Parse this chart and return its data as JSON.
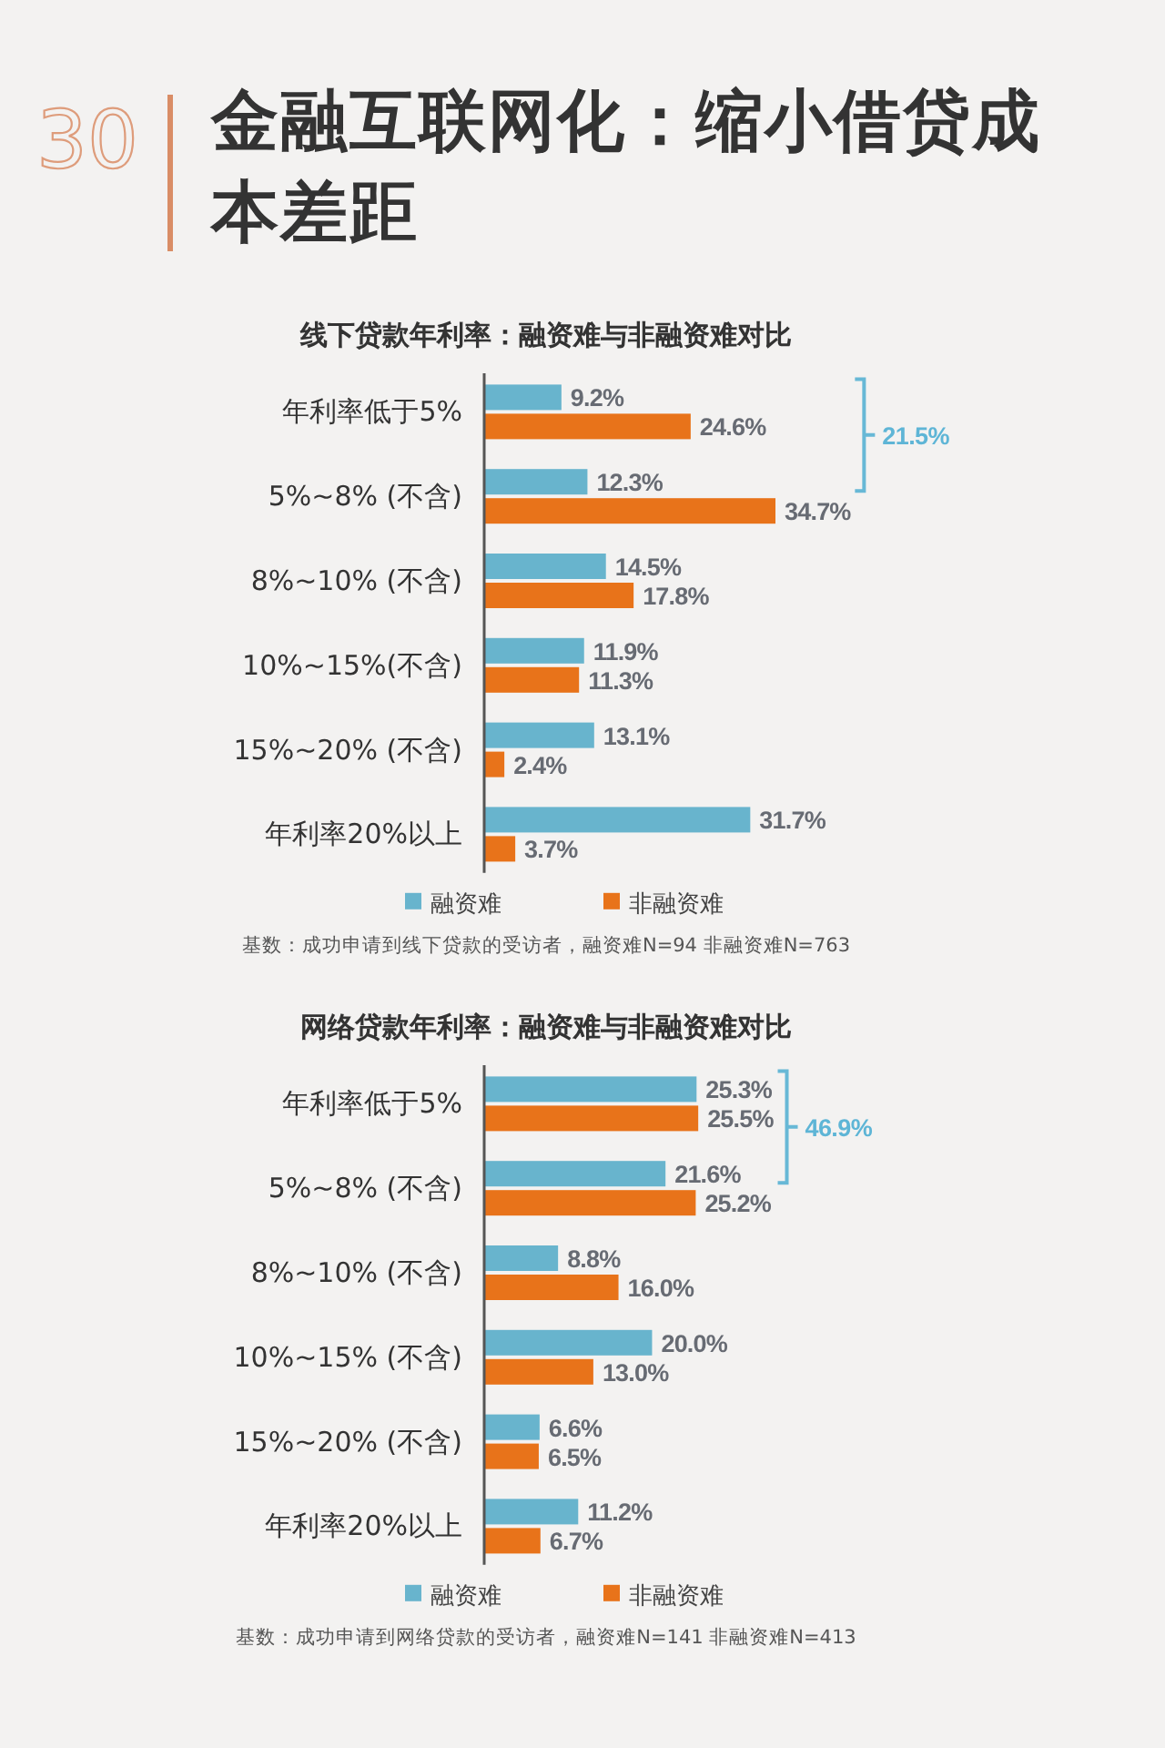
{
  "chart_data": [
    {
      "type": "other",
      "title": "金融互联网化：缩小借贷成本差距",
      "annotations": [
        "30"
      ]
    },
    {
      "type": "bar",
      "orientation": "horizontal",
      "title": "线下贷款年利率：融资难与非融资难对比",
      "categories": [
        "年利率低于5%",
        "5%~8% (不含)",
        "8%~10% (不含)",
        "10%~15%(不含)",
        "15%~20% (不含)",
        "年利率20%以上"
      ],
      "series": [
        {
          "name": "融资难",
          "color": "#68b4cd",
          "values": [
            9.2,
            12.3,
            14.5,
            11.9,
            13.1,
            31.7
          ],
          "value_labels": [
            "9.2%",
            "12.3%",
            "14.5%",
            "11.9%",
            "13.1%",
            "31.7%"
          ]
        },
        {
          "name": "非融资难",
          "color": "#e8731a",
          "values": [
            24.6,
            34.7,
            17.8,
            11.3,
            2.4,
            3.7
          ],
          "value_labels": [
            "24.6%",
            "34.7%",
            "17.8%",
            "11.3%",
            "2.4%",
            "3.7%"
          ]
        }
      ],
      "tick_labels": "y",
      "legend": "bottom",
      "annotations": [
        "21.5%",
        "基数：成功申请到线下贷款的受访者，融资难N=94 非融资难N=763"
      ]
    },
    {
      "type": "bar",
      "orientation": "horizontal",
      "title": "网络贷款年利率：融资难与非融资难对比",
      "categories": [
        "年利率低于5%",
        "5%~8% (不含)",
        "8%~10% (不含)",
        "10%~15% (不含)",
        "15%~20% (不含)",
        "年利率20%以上"
      ],
      "series": [
        {
          "name": "融资难",
          "color": "#68b4cd",
          "values": [
            25.3,
            21.6,
            8.8,
            20.0,
            6.6,
            11.2
          ],
          "value_labels": [
            "25.3%",
            "21.6%",
            "8.8%",
            "20.0%",
            "6.6%",
            "11.2%"
          ]
        },
        {
          "name": "非融资难",
          "color": "#e8731a",
          "values": [
            25.5,
            25.2,
            16.0,
            13.0,
            6.5,
            6.7
          ],
          "value_labels": [
            "25.5%",
            "25.2%",
            "16.0%",
            "13.0%",
            "6.5%",
            "6.7%"
          ]
        }
      ],
      "tick_labels": "y",
      "legend": "bottom",
      "annotations": [
        "46.9%",
        "基数：成功申请到网络贷款的受访者，融资难N=141 非融资难N=413"
      ]
    }
  ]
}
